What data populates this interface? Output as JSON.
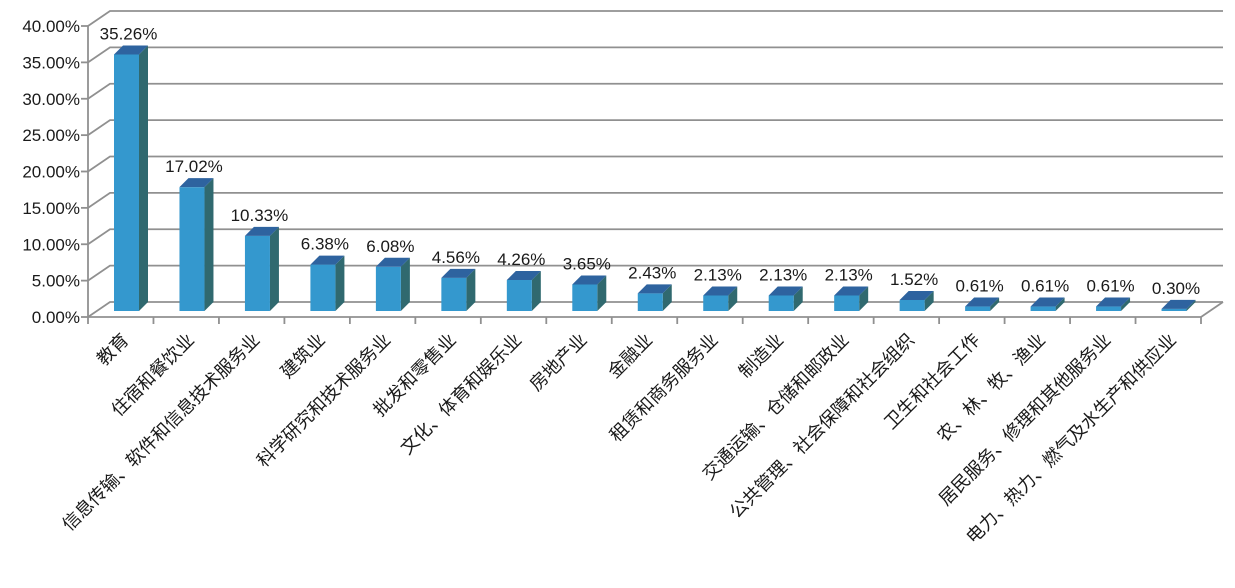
{
  "chart_data": {
    "type": "bar",
    "style": "3d-column",
    "title": "",
    "xlabel": "",
    "ylabel": "",
    "legend": "none",
    "grid": true,
    "categories": [
      "教育",
      "住宿和餐饮业",
      "信息传输、软件和信息技术服务业",
      "建筑业",
      "科学研究和技术服务业",
      "批发和零售业",
      "文化、体育和娱乐业",
      "房地产业",
      "金融业",
      "租赁和商务服务业",
      "制造业",
      "交通运输、仓储和邮政业",
      "公共管理、社会保障和社会组织",
      "卫生和社会工作",
      "农、林、牧、渔业",
      "居民服务、修理和其他服务业",
      "电力、热力、燃气及水生产和供应业"
    ],
    "values": [
      35.26,
      17.02,
      10.33,
      6.38,
      6.08,
      4.56,
      4.26,
      3.65,
      2.43,
      2.13,
      2.13,
      2.13,
      1.52,
      0.61,
      0.61,
      0.61,
      0.3
    ],
    "data_labels": [
      "35.26%",
      "17.02%",
      "10.33%",
      "6.38%",
      "6.08%",
      "4.56%",
      "4.26%",
      "3.65%",
      "2.43%",
      "2.13%",
      "2.13%",
      "2.13%",
      "1.52%",
      "0.61%",
      "0.61%",
      "0.61%",
      "0.30%"
    ],
    "y_axis": {
      "min": 0,
      "max": 40,
      "step": 5,
      "ticks": [
        "0.00%",
        "5.00%",
        "10.00%",
        "15.00%",
        "20.00%",
        "25.00%",
        "30.00%",
        "35.00%",
        "40.00%"
      ]
    },
    "colors": {
      "bar_front": "#3498CE",
      "bar_top": "#2E639F",
      "bar_side": "#30696F",
      "grid": "#909090",
      "axis": "#909090",
      "text": "#1A1A1A",
      "background": "#FFFFFF"
    }
  }
}
